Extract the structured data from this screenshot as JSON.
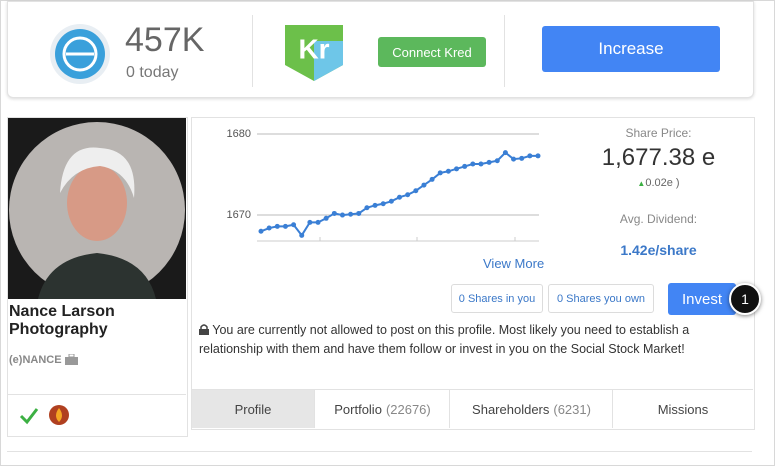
{
  "header": {
    "score": "457K",
    "today": "0 today",
    "kred_logo": "Kr",
    "connect_button": "Connect Kred",
    "increase_button": "Increase"
  },
  "profile": {
    "name": "Nance Larson Photography",
    "handle": "(e)NANCE"
  },
  "chart_data": {
    "type": "line",
    "color": "#3a7fd5",
    "values": [
      1668.0,
      1668.4,
      1668.6,
      1668.6,
      1668.8,
      1667.5,
      1669.1,
      1669.1,
      1669.6,
      1670.2,
      1670.0,
      1670.1,
      1670.2,
      1670.9,
      1671.2,
      1671.4,
      1671.7,
      1672.2,
      1672.5,
      1673.0,
      1673.7,
      1674.4,
      1675.2,
      1675.4,
      1675.7,
      1676.0,
      1676.3,
      1676.3,
      1676.5,
      1676.7,
      1677.7,
      1676.9,
      1677.0,
      1677.3,
      1677.3
    ],
    "ylim": [
      1666.8,
      1681.85
    ],
    "yticks": [
      1670,
      1680
    ],
    "grid": true
  },
  "stats": {
    "view_more": "View More",
    "share_price_label": "Share Price:",
    "share_price": "1,677.38 e",
    "change": "0.02e )",
    "dividend_label": "Avg. Dividend:",
    "dividend": "1.42e/share"
  },
  "buttons": {
    "shares_in_you": "0 Shares in you",
    "shares_you_own": "0 Shares you own",
    "invest": "Invest"
  },
  "step_badge": "1",
  "notice": "You are currently not allowed to post on this profile. Most likely you need to establish a relationship with them and have them follow or invest in you on the Social Stock Market!",
  "tabs": [
    {
      "label": "Profile"
    },
    {
      "label": "Portfolio",
      "count": "(22676)"
    },
    {
      "label": "Shareholders",
      "count": "(6231)"
    },
    {
      "label": "Missions"
    }
  ]
}
